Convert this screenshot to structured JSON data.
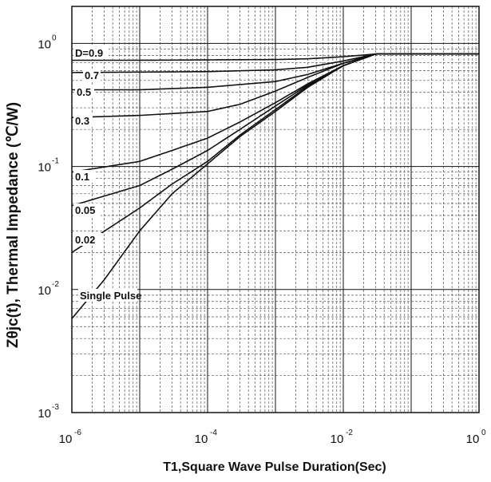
{
  "chart_data": {
    "type": "line",
    "xscale": "log",
    "yscale": "log",
    "xlim": [
      1e-06,
      1
    ],
    "ylim": [
      0.001,
      2
    ],
    "grid": true,
    "xlabel": "T1,Square Wave Pulse Duration(Sec)",
    "ylabel": "Zθjc(t), Thermal Impedance (℃/W)",
    "x_ticks": [
      {
        "value": 1e-06,
        "base": "10",
        "exp": "-6"
      },
      {
        "value": 0.0001,
        "base": "10",
        "exp": "-4"
      },
      {
        "value": 0.01,
        "base": "10",
        "exp": "-2"
      },
      {
        "value": 1,
        "base": "10",
        "exp": "0"
      }
    ],
    "y_ticks": [
      {
        "value": 0.001,
        "base": "10",
        "exp": "-3"
      },
      {
        "value": 0.01,
        "base": "10",
        "exp": "-2"
      },
      {
        "value": 0.1,
        "base": "10",
        "exp": "-1"
      },
      {
        "value": 1,
        "base": "10",
        "exp": "0"
      }
    ],
    "series": [
      {
        "name": "D=0.9",
        "x": [
          1e-06,
          1e-05,
          0.0001,
          0.001,
          0.003,
          0.01,
          0.03,
          1
        ],
        "y": [
          0.73,
          0.73,
          0.735,
          0.74,
          0.75,
          0.78,
          0.82,
          0.82
        ]
      },
      {
        "name": "0.7",
        "x": [
          1e-06,
          1e-05,
          0.0001,
          0.001,
          0.003,
          0.01,
          0.03,
          1
        ],
        "y": [
          0.58,
          0.585,
          0.59,
          0.61,
          0.64,
          0.72,
          0.82,
          0.82
        ]
      },
      {
        "name": "0.5",
        "x": [
          1e-06,
          1e-05,
          0.0001,
          0.001,
          0.003,
          0.01,
          0.03,
          1
        ],
        "y": [
          0.42,
          0.42,
          0.44,
          0.49,
          0.56,
          0.69,
          0.82,
          0.82
        ]
      },
      {
        "name": "0.3",
        "x": [
          1e-06,
          1e-05,
          0.0001,
          0.0003,
          0.001,
          0.003,
          0.01,
          0.03,
          1
        ],
        "y": [
          0.25,
          0.26,
          0.28,
          0.32,
          0.41,
          0.53,
          0.69,
          0.82,
          0.82
        ]
      },
      {
        "name": "0.1",
        "x": [
          1e-06,
          1e-05,
          3e-05,
          0.0001,
          0.0003,
          0.001,
          0.003,
          0.01,
          0.03,
          1
        ],
        "y": [
          0.09,
          0.11,
          0.135,
          0.17,
          0.23,
          0.33,
          0.47,
          0.66,
          0.82,
          0.82
        ]
      },
      {
        "name": "0.05",
        "x": [
          1e-06,
          1e-05,
          3e-05,
          0.0001,
          0.0003,
          0.001,
          0.003,
          0.01,
          0.03,
          1
        ],
        "y": [
          0.048,
          0.07,
          0.095,
          0.135,
          0.2,
          0.31,
          0.46,
          0.66,
          0.82,
          0.82
        ]
      },
      {
        "name": "0.02",
        "x": [
          1e-06,
          1e-05,
          3e-05,
          0.0001,
          0.0003,
          0.001,
          0.003,
          0.01,
          0.03,
          1
        ],
        "y": [
          0.02,
          0.046,
          0.072,
          0.11,
          0.18,
          0.29,
          0.45,
          0.66,
          0.82,
          0.82
        ]
      },
      {
        "name": "Single Pulse",
        "x": [
          1e-06,
          3e-06,
          1e-05,
          3e-05,
          0.0001,
          0.0003,
          0.001,
          0.003,
          0.01,
          0.03,
          1
        ],
        "y": [
          0.0058,
          0.012,
          0.03,
          0.06,
          0.105,
          0.175,
          0.28,
          0.44,
          0.66,
          0.82,
          0.82
        ]
      }
    ],
    "labels": {
      "d09": "D=0.9",
      "d07": "0.7",
      "d05": "0.5",
      "d03": "0.3",
      "d01": "0.1",
      "d005": "0.05",
      "d002": "0.02",
      "single": "Single Pulse"
    }
  }
}
